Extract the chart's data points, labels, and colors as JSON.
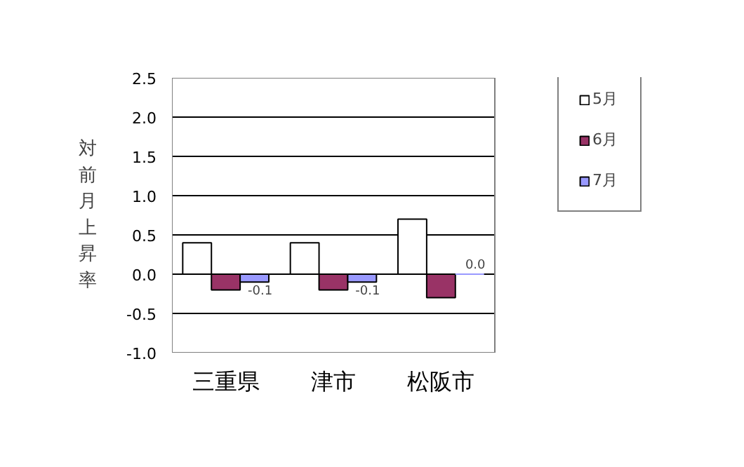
{
  "chart_data": {
    "type": "bar",
    "ylabel": "対前月上昇率",
    "categories": [
      "三重県",
      "津市",
      "松阪市"
    ],
    "series": [
      {
        "name": "5月",
        "color": "#ffffff",
        "values": [
          0.4,
          0.4,
          0.7
        ]
      },
      {
        "name": "6月",
        "color": "#993366",
        "values": [
          -0.2,
          -0.2,
          -0.3
        ]
      },
      {
        "name": "7月",
        "color": "#9999ff",
        "values": [
          -0.1,
          -0.1,
          0.0
        ],
        "value_labels": [
          "-0.1",
          "-0.1",
          "0.0"
        ]
      }
    ],
    "ylim": [
      -1.0,
      2.5
    ],
    "yticks": [
      {
        "value": -1.0,
        "label": "-1.0"
      },
      {
        "value": -0.5,
        "label": "-0.5"
      },
      {
        "value": 0.0,
        "label": "0.0"
      },
      {
        "value": 0.5,
        "label": "0.5"
      },
      {
        "value": 1.0,
        "label": "1.0"
      },
      {
        "value": 1.5,
        "label": "1.5"
      },
      {
        "value": 2.0,
        "label": "2.0"
      },
      {
        "value": 2.5,
        "label": "2.5"
      }
    ],
    "grid": "y",
    "legend": "right"
  }
}
